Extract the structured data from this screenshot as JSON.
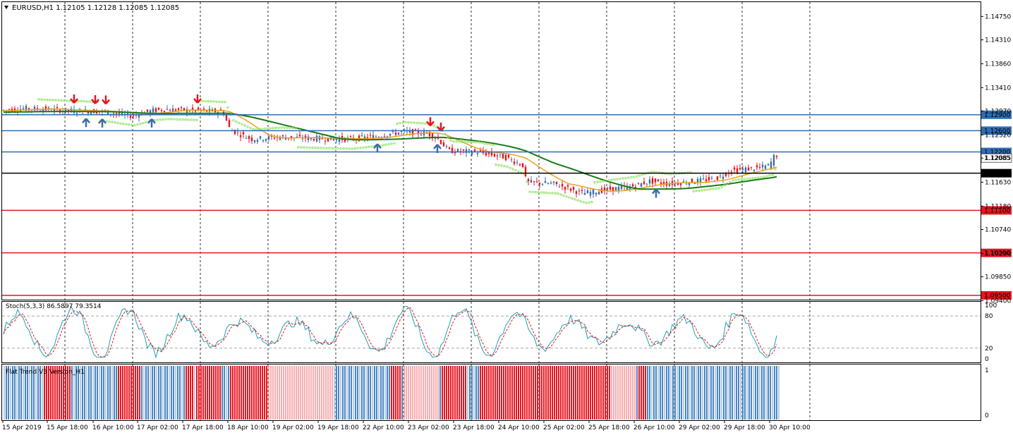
{
  "header": {
    "symbol_line": "EURUSD,H1  1.12105 1.12128 1.12085 1.12085",
    "menu_icon": "triangle-down-icon"
  },
  "main_axis": {
    "ylim": [
      1.0942,
      1.1502
    ],
    "ticks": [
      "1.14750",
      "1.14310",
      "1.13860",
      "1.13410",
      "1.12970",
      "1.12520",
      "1.12085",
      "1.11630",
      "1.11180",
      "1.10740",
      "1.10290",
      "1.09850",
      "1.09400"
    ],
    "tick_values": [
      1.1475,
      1.1431,
      1.1386,
      1.1341,
      1.1297,
      1.1252,
      1.12085,
      1.1163,
      1.1118,
      1.1074,
      1.1029,
      1.0985,
      1.094
    ]
  },
  "levels": [
    {
      "price": 1.129,
      "label": "1.12900",
      "color": "#2f6db5",
      "bg": "#2f6db5",
      "fg": "#ffffff"
    },
    {
      "price": 1.126,
      "label": "1.12600",
      "color": "#2f6db5",
      "bg": "#2f6db5",
      "fg": "#ffffff"
    },
    {
      "price": 1.122,
      "label": "1.12200",
      "color": "#2f6db5",
      "bg": "#2f6db5",
      "fg": "#ffffff"
    },
    {
      "price": 1.118,
      "label": "1.11800",
      "color": "#000000",
      "bg": "#000000",
      "fg": "#ffffff"
    },
    {
      "price": 1.111,
      "label": "1.11100",
      "color": "#e8141e",
      "bg": "#e8141e",
      "fg": "#ffffff"
    },
    {
      "price": 1.103,
      "label": "1.10300",
      "color": "#e8141e",
      "bg": "#e8141e",
      "fg": "#ffffff"
    },
    {
      "price": 1.095,
      "label": "1.09500",
      "color": "#e8141e",
      "bg": "#e8141e",
      "fg": "#ffffff"
    }
  ],
  "current_price": {
    "price": 1.12085,
    "label": "1.12085"
  },
  "stoch": {
    "title": "Stoch(5,3,3) 86.5897 79.3514",
    "ticks": [
      "100",
      "80",
      "20",
      "0"
    ],
    "tick_values": [
      100,
      80,
      20,
      0
    ]
  },
  "flat_trend": {
    "title": "Flat Trend V3 Version_H1",
    "ticks": [
      "1",
      "0"
    ]
  },
  "x_axis": {
    "labels": [
      "15 Apr 2019",
      "15 Apr 18:00",
      "16 Apr 10:00",
      "17 Apr 02:00",
      "17 Apr 18:00",
      "18 Apr 10:00",
      "19 Apr 02:00",
      "19 Apr 18:00",
      "22 Apr 10:00",
      "23 Apr 02:00",
      "23 Apr 18:00",
      "24 Apr 10:00",
      "25 Apr 02:00",
      "25 Apr 18:00",
      "26 Apr 10:00",
      "29 Apr 02:00",
      "29 Apr 18:00",
      "30 Apr 10:00"
    ]
  },
  "chart_data": {
    "type": "line",
    "title": "EURUSD,H1  1.12105 1.12128 1.12085 1.12085",
    "ylim": [
      1.0942,
      1.1502
    ],
    "x": [
      "15 Apr 2019",
      "15 Apr 18:00",
      "16 Apr 10:00",
      "17 Apr 02:00",
      "17 Apr 18:00",
      "18 Apr 10:00",
      "19 Apr 02:00",
      "19 Apr 18:00",
      "22 Apr 10:00",
      "23 Apr 02:00",
      "23 Apr 18:00",
      "24 Apr 10:00",
      "25 Apr 02:00",
      "25 Apr 18:00",
      "26 Apr 10:00",
      "29 Apr 02:00",
      "29 Apr 18:00",
      "30 Apr 10:00"
    ],
    "series": [
      {
        "name": "EURUSD,H1",
        "values": [
          1.13,
          1.1298,
          1.1296,
          1.1298,
          1.13,
          1.124,
          1.1245,
          1.1242,
          1.125,
          1.1255,
          1.122,
          1.1165,
          1.116,
          1.115,
          1.116,
          1.1168,
          1.1185,
          1.12085
        ]
      }
    ],
    "colors": {
      "up": "#3a6ea5",
      "down": "#e8141e",
      "ma_fast": "#f0a020",
      "ma_slow": "#1a7a1a",
      "sar": "#7ddc4a",
      "stoch_main": "#20a0b0",
      "stoch_signal": "#e8141e",
      "trend_up": "#4a86c0",
      "trend_down": "#e8141e"
    }
  }
}
